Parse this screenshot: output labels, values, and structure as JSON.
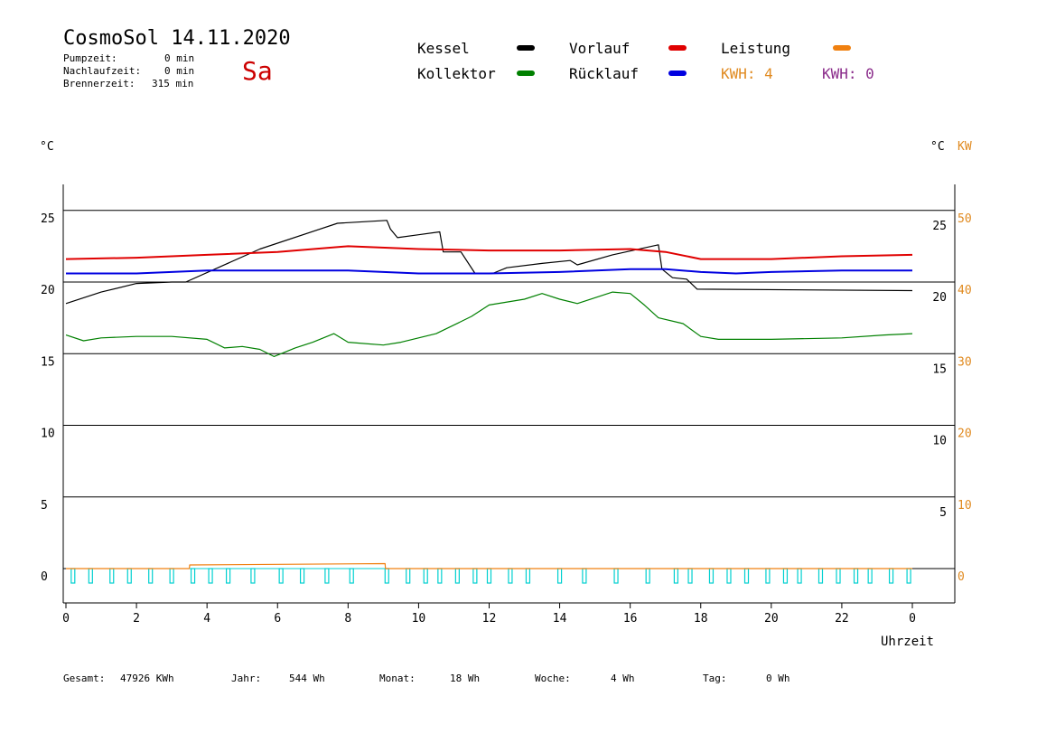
{
  "header": {
    "title": "CosmoSol 14.11.2020",
    "day": "Sa",
    "pumpzeit_label": "Pumpzeit:",
    "pumpzeit_value": "0 min",
    "nachlaufzeit_label": "Nachlaufzeit:",
    "nachlaufzeit_value": "0 min",
    "brennerzeit_label": "Brennerzeit:",
    "brennerzeit_value": "315 min"
  },
  "legend": {
    "kessel": "Kessel",
    "kollektor": "Kollektor",
    "vorlauf": "Vorlauf",
    "ruecklauf": "Rücklauf",
    "leistung": "Leistung",
    "kwh1": "KWH: 4",
    "kwh2": "KWH: 0",
    "colors": {
      "kessel": "#000000",
      "kollektor": "#008000",
      "vorlauf": "#e00000",
      "ruecklauf": "#0000e0",
      "leistung": "#f08010",
      "kwh1": "#e08a20",
      "kwh2": "#8a2b8a",
      "pump": "#00d0d0"
    }
  },
  "units": {
    "left": "°C",
    "right_c": "°C",
    "right_kw": "KW"
  },
  "footer": {
    "gesamt_label": "Gesamt:",
    "gesamt_value": "47926 KWh",
    "jahr_label": "Jahr:",
    "jahr_value": "544 Wh",
    "monat_label": "Monat:",
    "monat_value": "18 Wh",
    "woche_label": "Woche:",
    "woche_value": "4 Wh",
    "tag_label": "Tag:",
    "tag_value": "0 Wh"
  },
  "chart_data": {
    "type": "line",
    "xlabel": "Uhrzeit",
    "xticks": [
      "0",
      "2",
      "4",
      "6",
      "8",
      "10",
      "12",
      "14",
      "16",
      "18",
      "20",
      "22",
      "0"
    ],
    "yticks_left": [
      "25",
      "20",
      "15",
      "10",
      "5",
      "0"
    ],
    "yticks_right_c": [
      "25",
      "20",
      "15",
      "10",
      "5"
    ],
    "yticks_right_kw": [
      "50",
      "40",
      "30",
      "20",
      "10",
      "0"
    ],
    "xlim": [
      0,
      24
    ],
    "ylim": [
      -2,
      28
    ],
    "grid_y": [
      25,
      20,
      15,
      10,
      5,
      0
    ],
    "series": [
      {
        "name": "Kessel",
        "x": [
          0,
          1,
          2,
          3,
          3.4,
          5.5,
          7.7,
          9.1,
          9.2,
          9.4,
          10,
          10.6,
          10.7,
          11.2,
          11.6,
          11.7,
          12.1,
          12.5,
          13.5,
          14.3,
          14.5,
          15.5,
          16.8,
          16.9,
          17.2,
          17.6,
          17.9,
          24
        ],
        "y": [
          18.5,
          19.3,
          19.9,
          20,
          20,
          22.3,
          24.1,
          24.3,
          23.7,
          23.1,
          23.3,
          23.5,
          22.1,
          22.1,
          20.6,
          20.6,
          20.6,
          21,
          21.3,
          21.5,
          21.2,
          21.9,
          22.6,
          20.9,
          20.3,
          20.2,
          19.5,
          19.4
        ]
      },
      {
        "name": "Vorlauf",
        "x": [
          0,
          2,
          4,
          6,
          8,
          10,
          12,
          14,
          16,
          17,
          18,
          19,
          20,
          22,
          24
        ],
        "y": [
          21.6,
          21.7,
          21.9,
          22.1,
          22.5,
          22.3,
          22.2,
          22.2,
          22.3,
          22.1,
          21.6,
          21.6,
          21.6,
          21.8,
          21.9
        ]
      },
      {
        "name": "Rücklauf",
        "x": [
          0,
          2,
          4,
          6,
          8,
          10,
          12,
          14,
          16,
          17,
          18,
          19,
          20,
          22,
          24
        ],
        "y": [
          20.6,
          20.6,
          20.8,
          20.8,
          20.8,
          20.6,
          20.6,
          20.7,
          20.9,
          20.9,
          20.7,
          20.6,
          20.7,
          20.8,
          20.8
        ]
      },
      {
        "name": "Kollektor",
        "x": [
          0,
          0.5,
          1,
          2,
          3,
          4,
          4.5,
          5,
          5.5,
          5.9,
          6.5,
          7,
          7.6,
          8,
          9,
          9.5,
          10.5,
          11,
          11.5,
          12,
          13,
          13.5,
          14,
          14.5,
          15,
          15.5,
          16,
          16.4,
          16.8,
          17.5,
          18,
          18.5,
          20,
          22,
          23.2,
          24
        ],
        "y": [
          16.3,
          15.9,
          16.1,
          16.2,
          16.2,
          16,
          15.4,
          15.5,
          15.3,
          14.8,
          15.4,
          15.8,
          16.4,
          15.8,
          15.6,
          15.8,
          16.4,
          17,
          17.6,
          18.4,
          18.8,
          19.2,
          18.8,
          18.5,
          18.9,
          19.3,
          19.2,
          18.4,
          17.5,
          17.1,
          16.2,
          16,
          16,
          16.1,
          16.3,
          16.4
        ]
      },
      {
        "name": "Leistung",
        "x": [
          0,
          3.5,
          3.51,
          9.05,
          9.06,
          24
        ],
        "y": [
          0,
          0,
          0.25,
          0.35,
          0,
          0
        ]
      }
    ],
    "pump_pulses_hours": [
      0.2,
      0.7,
      1.3,
      1.8,
      2.4,
      3.0,
      3.6,
      4.1,
      4.6,
      5.3,
      6.1,
      6.7,
      7.4,
      8.1,
      9.1,
      9.7,
      10.2,
      10.6,
      11.1,
      11.6,
      12.0,
      12.6,
      13.1,
      14.0,
      14.7,
      15.6,
      16.5,
      17.3,
      17.7,
      18.3,
      18.8,
      19.3,
      19.9,
      20.4,
      20.8,
      21.4,
      21.9,
      22.4,
      22.8,
      23.4,
      23.9
    ]
  }
}
